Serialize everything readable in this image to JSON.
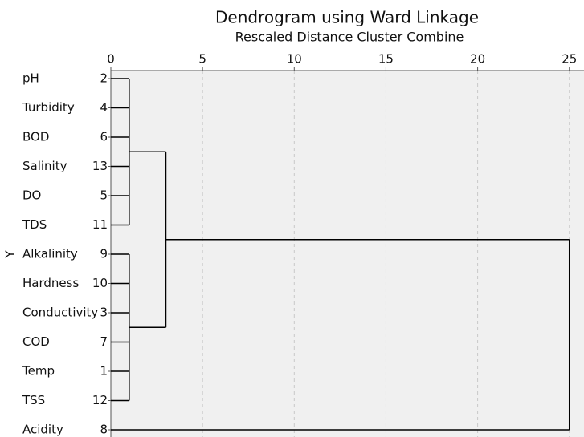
{
  "chart_data": {
    "type": "dendrogram",
    "title": "Dendrogram using Ward Linkage",
    "subtitle": "Rescaled Distance Cluster Combine",
    "ylabel": "Y",
    "leaves": [
      {
        "name": "pH",
        "id": 2
      },
      {
        "name": "Turbidity",
        "id": 4
      },
      {
        "name": "BOD",
        "id": 6
      },
      {
        "name": "Salinity",
        "id": 13
      },
      {
        "name": "DO",
        "id": 5
      },
      {
        "name": "TDS",
        "id": 11
      },
      {
        "name": "Alkalinity",
        "id": 9
      },
      {
        "name": "Hardness",
        "id": 10
      },
      {
        "name": "Conductivity",
        "id": 3
      },
      {
        "name": "COD",
        "id": 7
      },
      {
        "name": "Temp",
        "id": 1
      },
      {
        "name": "TSS",
        "id": 12
      },
      {
        "name": "Acidity",
        "id": 8
      }
    ],
    "merges": [
      {
        "children": [
          0,
          1,
          2,
          3,
          4,
          5
        ],
        "height": 1
      },
      {
        "children": [
          6,
          7,
          8,
          9,
          10,
          11
        ],
        "height": 1
      },
      {
        "children": [
          13,
          14
        ],
        "height": 3
      },
      {
        "children": [
          15,
          12
        ],
        "height": 25
      }
    ],
    "xlim": [
      0,
      25.8
    ],
    "xticks": [
      0,
      5,
      10,
      15,
      20,
      25
    ],
    "grid": true,
    "color": "#000000"
  }
}
